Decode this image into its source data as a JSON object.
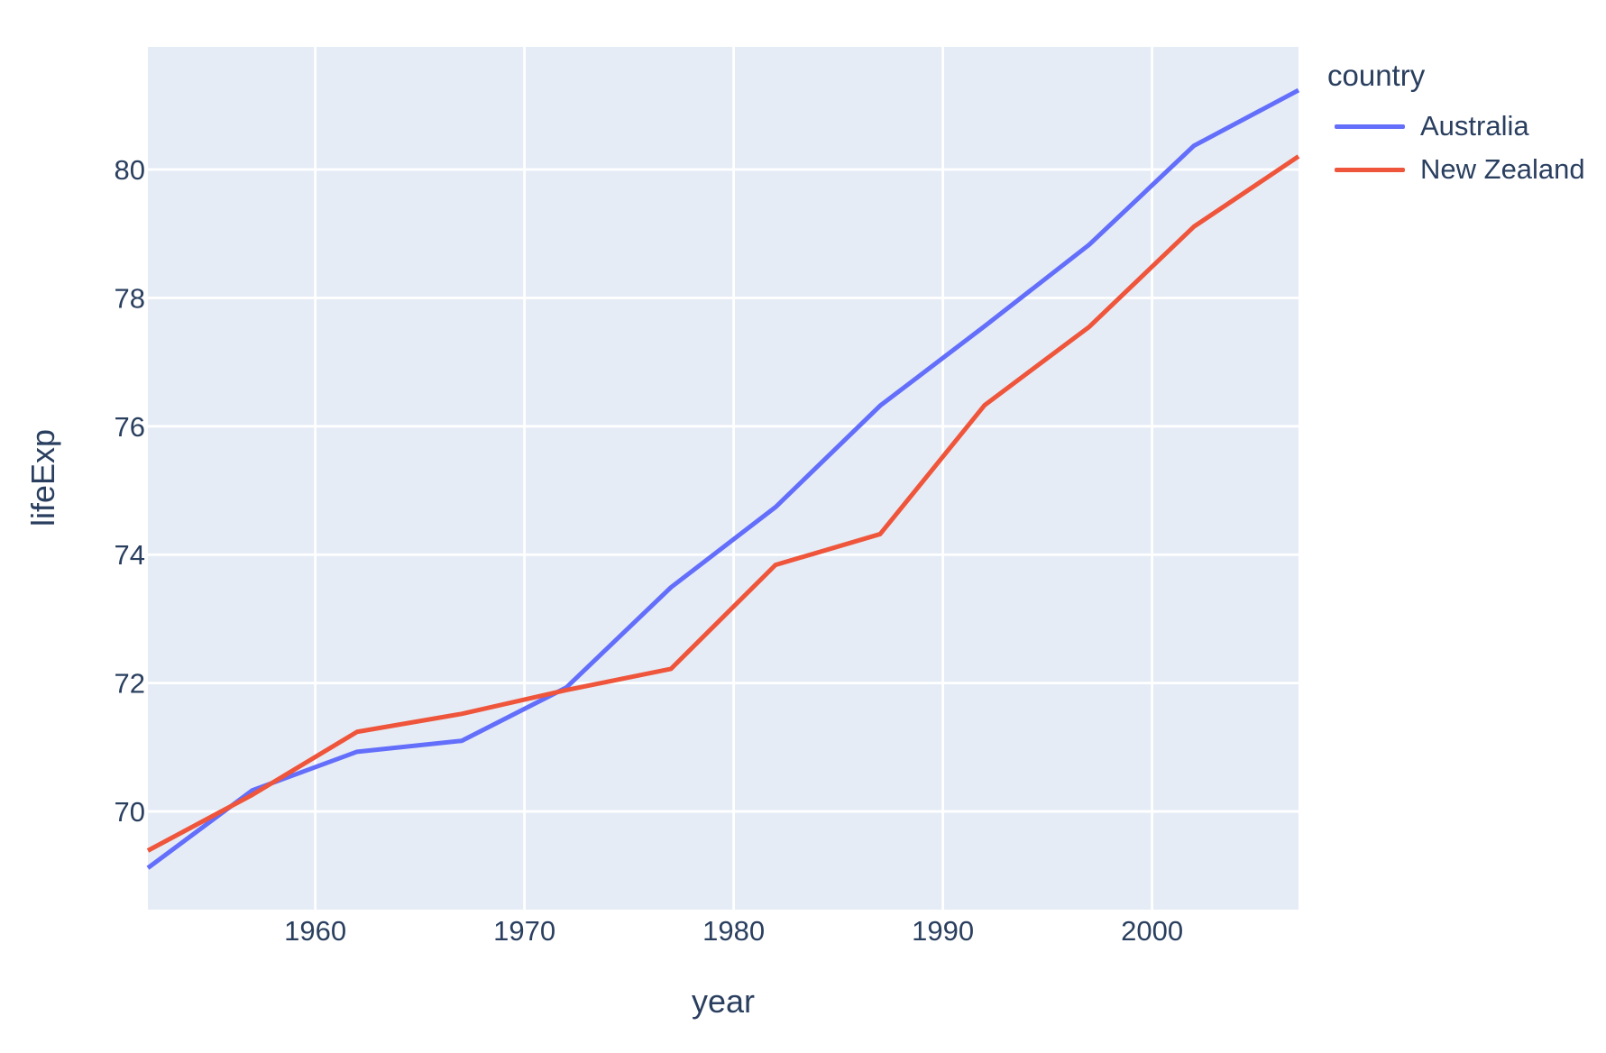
{
  "chart_data": {
    "type": "line",
    "title": "",
    "xlabel": "year",
    "ylabel": "lifeExp",
    "legend_title": "country",
    "x": [
      1952,
      1957,
      1962,
      1967,
      1972,
      1977,
      1982,
      1987,
      1992,
      1997,
      2002,
      2007
    ],
    "series": [
      {
        "name": "Australia",
        "color": "#636EFA",
        "values": [
          69.12,
          70.33,
          70.93,
          71.1,
          71.93,
          73.49,
          74.74,
          76.32,
          77.56,
          78.83,
          80.37,
          81.235
        ]
      },
      {
        "name": "New Zealand",
        "color": "#EF553B",
        "values": [
          69.39,
          70.26,
          71.24,
          71.52,
          71.89,
          72.22,
          73.84,
          74.32,
          76.33,
          77.55,
          79.11,
          80.204
        ]
      }
    ],
    "xticks": [
      1960,
      1970,
      1980,
      1990,
      2000
    ],
    "yticks": [
      70,
      72,
      74,
      76,
      78,
      80
    ],
    "xlim": [
      1952,
      2007
    ],
    "ylim": [
      68.47,
      81.91
    ],
    "grid": true,
    "legend_position": "top-right",
    "colors": {
      "plot_bg": "#E5ECF6",
      "grid": "#FFFFFF",
      "text": "#2a3f5f"
    }
  }
}
